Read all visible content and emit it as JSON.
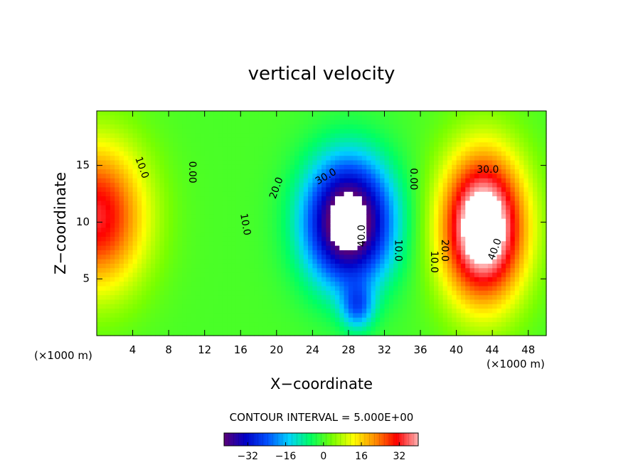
{
  "chart_data": {
    "type": "heatmap",
    "title": "vertical velocity",
    "xlabel": "X−coordinate",
    "ylabel": "Z−coordinate",
    "x_unit_left": "(×1000 m)",
    "x_unit_right": "(×1000 m)",
    "xlim": [
      0,
      50
    ],
    "ylim": [
      0,
      19.8
    ],
    "xticks": [
      4,
      8,
      12,
      16,
      20,
      24,
      28,
      32,
      36,
      40,
      44,
      48
    ],
    "xtick_labels": [
      "4",
      "8",
      "12",
      "16",
      "20",
      "24",
      "28",
      "32",
      "36",
      "40",
      "44",
      "48"
    ],
    "yticks": [
      5,
      10,
      15
    ],
    "ytick_labels": [
      "5",
      "10",
      "15"
    ],
    "grid": false,
    "contour_interval_text": "CONTOUR INTERVAL = 5.000E+00",
    "colorbar": {
      "range": [
        -42,
        40
      ],
      "ticks": [
        -32,
        -16,
        0,
        16,
        32
      ],
      "tick_labels": [
        "−32",
        "−16",
        "0",
        "16",
        "32"
      ],
      "colors": [
        "#5a0078",
        "#0000c8",
        "#0050ff",
        "#00d2ff",
        "#00ff64",
        "#78ff00",
        "#ffff00",
        "#ff8c00",
        "#ff0000",
        "#ffb4b4"
      ]
    },
    "fields": [
      {
        "name": "left-updraft",
        "x": 0,
        "z": 10.5,
        "w": 33,
        "sx": 5.5,
        "sz": 6.5
      },
      {
        "name": "downdraft",
        "x": 28,
        "z": 10,
        "w": -52,
        "sx": 4.8,
        "sz": 5.5
      },
      {
        "name": "downdraft-foot",
        "x": 29,
        "z": 2.5,
        "w": -18,
        "sx": 1.8,
        "sz": 2
      },
      {
        "name": "right-updraft",
        "x": 43,
        "z": 9.5,
        "w": 52,
        "sx": 4.6,
        "sz": 6.5
      }
    ],
    "contour_labels": [
      {
        "text": "10.0",
        "x": 5,
        "z": 14.8,
        "angle": 70
      },
      {
        "text": "0.00",
        "x": 10.6,
        "z": 14.4,
        "angle": 90
      },
      {
        "text": "10.0",
        "x": 16.5,
        "z": 9.8,
        "angle": 80
      },
      {
        "text": "20.0",
        "x": 20,
        "z": 13,
        "angle": -70
      },
      {
        "text": "30.0",
        "x": 25.5,
        "z": 14,
        "angle": -30
      },
      {
        "text": "40.0",
        "x": 29.5,
        "z": 8.8,
        "angle": -90
      },
      {
        "text": "10.0",
        "x": 33.5,
        "z": 7.5,
        "angle": 90
      },
      {
        "text": "0.00",
        "x": 35.2,
        "z": 13.8,
        "angle": 90
      },
      {
        "text": "10.0",
        "x": 37.5,
        "z": 6.5,
        "angle": 90
      },
      {
        "text": "20.0",
        "x": 38.7,
        "z": 7.5,
        "angle": 90
      },
      {
        "text": "30.0",
        "x": 43.5,
        "z": 14.6,
        "angle": 0
      },
      {
        "text": "40.0",
        "x": 44.3,
        "z": 7.6,
        "angle": -70
      }
    ]
  }
}
